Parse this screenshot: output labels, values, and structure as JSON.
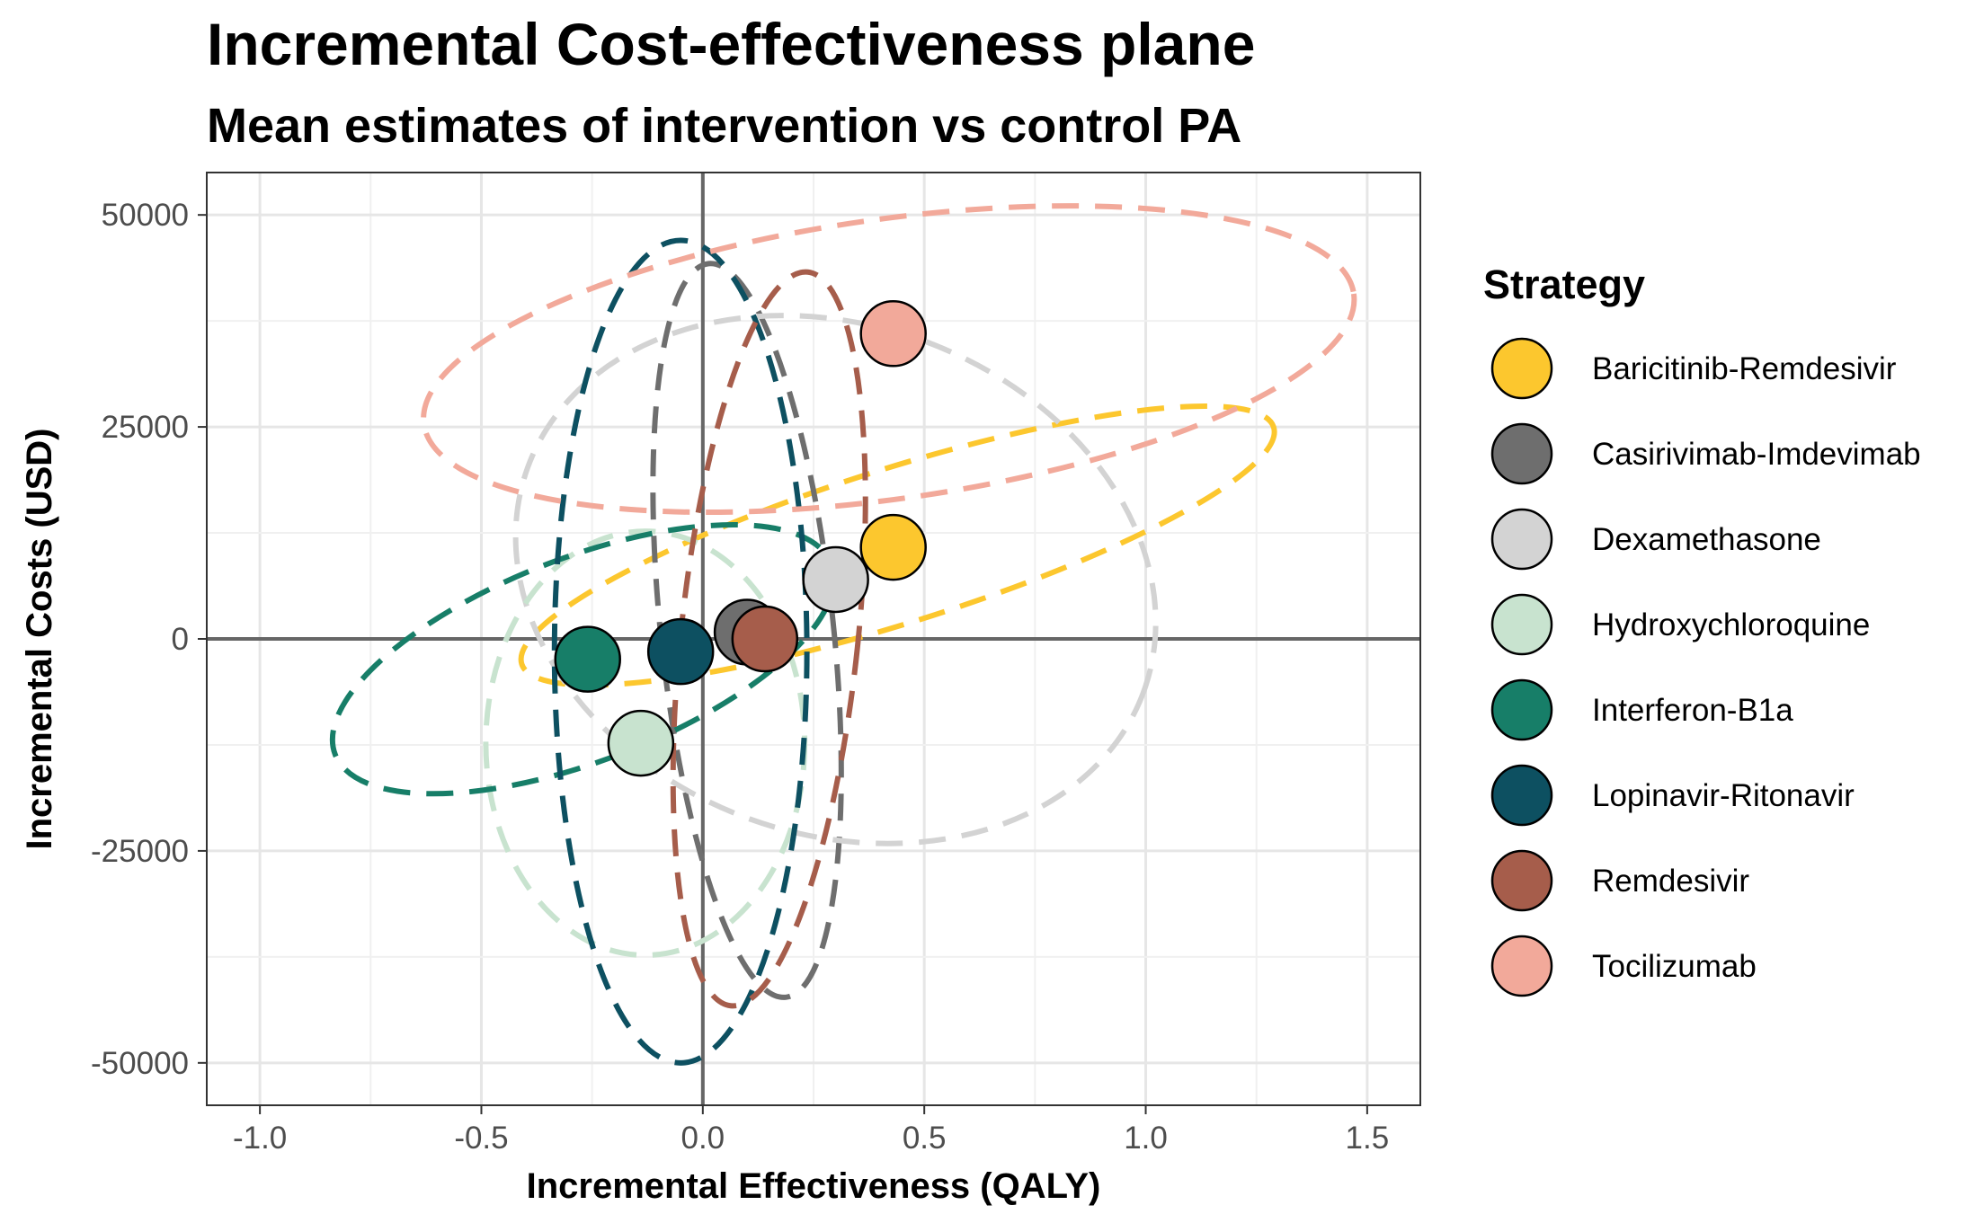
{
  "chart_data": {
    "type": "scatter",
    "title": "Incremental Cost-effectiveness plane",
    "subtitle": "Mean estimates of intervention vs control PA",
    "xlabel": "Incremental Effectiveness (QALY)",
    "ylabel": "Incremental Costs (USD)",
    "xlim": [
      -1.12,
      1.62
    ],
    "ylim": [
      -55000,
      55000
    ],
    "x_ticks": [
      -1.0,
      -0.5,
      0.0,
      0.5,
      1.0,
      1.5
    ],
    "x_tick_labels": [
      "-1.0",
      "-0.5",
      "0.0",
      "0.5",
      "1.0",
      "1.5"
    ],
    "y_ticks": [
      -50000,
      -25000,
      0,
      25000,
      50000
    ],
    "y_tick_labels": [
      "-50000",
      "-25000",
      "0",
      "25000",
      "50000"
    ],
    "grid": true,
    "reference_lines": {
      "x": 0,
      "y": 0
    },
    "legend": {
      "title": "Strategy",
      "position": "right"
    },
    "series": [
      {
        "name": "Baricitinib-Remdesivir",
        "color": "#FCC72E",
        "x": 0.43,
        "y": 10800,
        "ellipse": {
          "cx": 0.44,
          "cy": 11000,
          "rx": 0.89,
          "ry": 9100,
          "rotation": 17.5
        }
      },
      {
        "name": "Casirivimab-Imdevimab",
        "color": "#6E6E6E",
        "x": 0.1,
        "y": 800,
        "ellipse": {
          "cx": 0.1,
          "cy": 1000,
          "rx": 0.195,
          "ry": 43500,
          "rotation": 6
        }
      },
      {
        "name": "Dexamethasone",
        "color": "#D3D3D3",
        "x": 0.3,
        "y": 7000,
        "ellipse": {
          "cx": 0.3,
          "cy": 7000,
          "rx": 0.74,
          "ry": 30000,
          "rotation": -20
        }
      },
      {
        "name": "Hydroxychloroquine",
        "color": "#C8E3CF",
        "x": -0.14,
        "y": -12300,
        "ellipse": {
          "cx": -0.13,
          "cy": -12300,
          "rx": 0.36,
          "ry": 25000,
          "rotation": 0
        }
      },
      {
        "name": "Interferon-B1a",
        "color": "#177E68",
        "x": -0.26,
        "y": -2400,
        "ellipse": {
          "cx": -0.27,
          "cy": -2400,
          "rx": 0.6,
          "ry": 12000,
          "rotation": 21
        }
      },
      {
        "name": "Lopinavir-Ritonavir",
        "color": "#0D5061",
        "x": -0.05,
        "y": -1500,
        "ellipse": {
          "cx": -0.05,
          "cy": -1500,
          "rx": 0.285,
          "ry": 48500,
          "rotation": 0
        }
      },
      {
        "name": "Remdesivir",
        "color": "#A65D4B",
        "x": 0.14,
        "y": 0,
        "ellipse": {
          "cx": 0.15,
          "cy": 0,
          "rx": 0.2,
          "ry": 43500,
          "rotation": -6
        }
      },
      {
        "name": "Tocilizumab",
        "color": "#F2A99A",
        "x": 0.43,
        "y": 36000,
        "ellipse": {
          "cx": 0.42,
          "cy": 33000,
          "rx": 1.06,
          "ry": 16500,
          "rotation": 8
        }
      }
    ]
  }
}
